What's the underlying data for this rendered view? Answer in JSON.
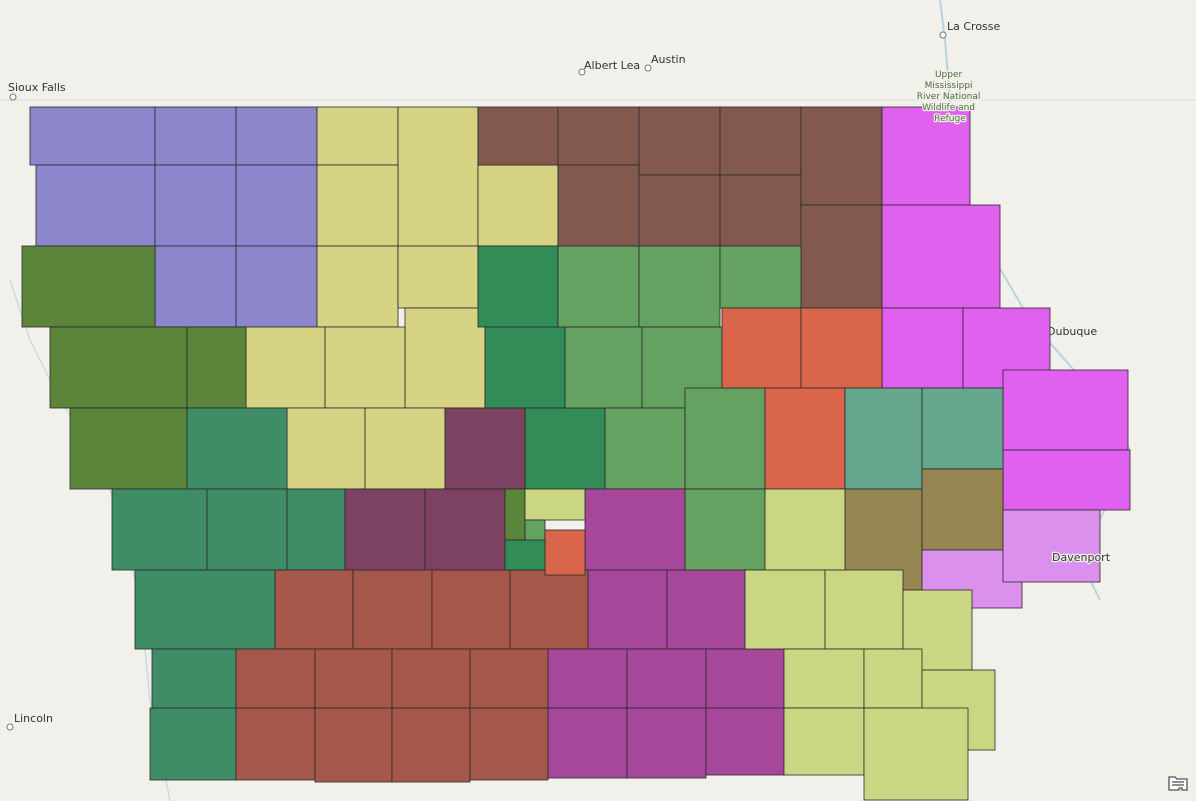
{
  "map": {
    "place_labels": [
      {
        "name": "Sioux Falls",
        "kind": "city"
      },
      {
        "name": "Albert Lea",
        "kind": "city"
      },
      {
        "name": "Austin",
        "kind": "city"
      },
      {
        "name": "La Crosse",
        "kind": "city"
      },
      {
        "name": "Dubuque",
        "kind": "city"
      },
      {
        "name": "Davenport",
        "kind": "city"
      },
      {
        "name": "Lincoln",
        "kind": "city"
      },
      {
        "name": "Upper Mississippi River National Wildlife and Refuge",
        "kind": "park"
      }
    ],
    "district_colors": {
      "purple": "#8c86cc",
      "yellow": "#d6d384",
      "brown": "#83594e",
      "magenta": "#e060f0",
      "dark_green": "#318c57",
      "medium_green": "#65a160",
      "orange": "#d9664a",
      "teal": "#66a68c",
      "olive": "#958652",
      "light_pink": "#dc90ee",
      "west_green": "#5b853a",
      "sea_green": "#3f8d66",
      "plum": "#7d4162",
      "red_brown": "#a5574a",
      "violet": "#a6479a",
      "lime": "#cbd683"
    },
    "background_color": "#f1f0eb",
    "border_color": "#2a2a2a"
  },
  "controls": {
    "legend_icon": "legend-icon"
  }
}
